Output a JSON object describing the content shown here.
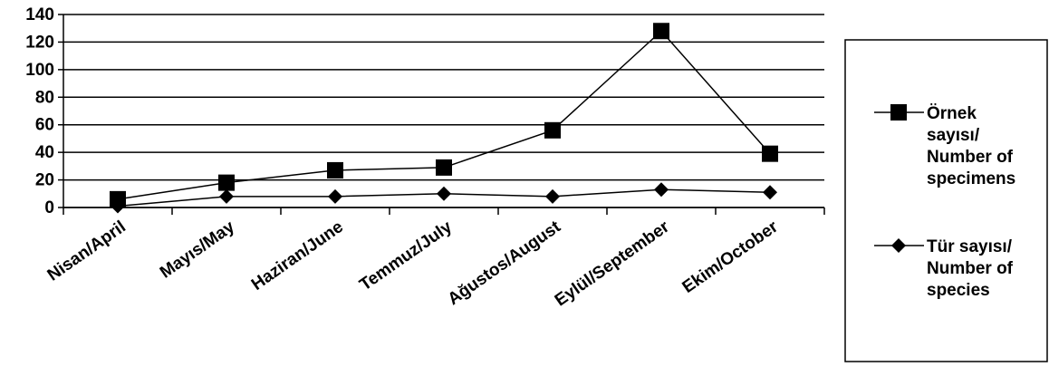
{
  "chart_data": {
    "type": "line",
    "categories": [
      "Nisan/April",
      "Mayıs/May",
      "Haziran/June",
      "Temmuz/July",
      "Ağustos/August",
      "Eylül/September",
      "Ekim/October"
    ],
    "series": [
      {
        "name": "Örnek sayısı/ Number of specimens",
        "name_lines": [
          "Örnek",
          "sayısı/",
          "Number of",
          "specimens"
        ],
        "marker": "square",
        "color": "#000000",
        "values": [
          6,
          18,
          27,
          29,
          56,
          128,
          39
        ]
      },
      {
        "name": "Tür sayısı/ Number of species",
        "name_lines": [
          "Tür sayısı/",
          "Number of",
          "species"
        ],
        "marker": "diamond",
        "color": "#000000",
        "values": [
          1,
          8,
          8,
          10,
          8,
          13,
          11
        ]
      }
    ],
    "yticks": [
      "0",
      "20",
      "40",
      "60",
      "80",
      "100",
      "120",
      "140"
    ],
    "ylim": [
      0,
      140
    ],
    "grid": true,
    "legend": "right"
  }
}
